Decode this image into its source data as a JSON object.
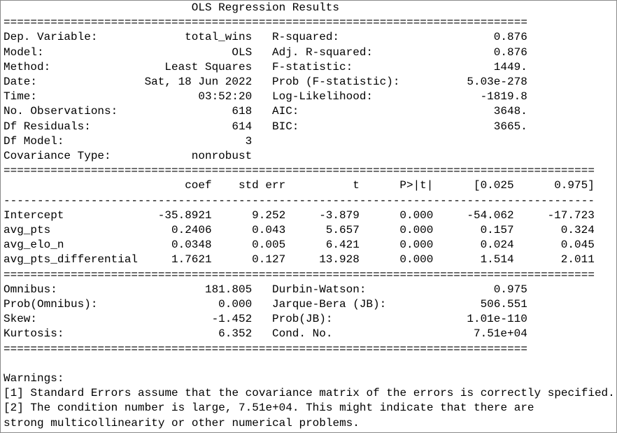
{
  "title": "OLS Regression Results",
  "separators": {
    "narrow": "==============================================================================",
    "wide": "========================================================================================",
    "dash": "----------------------------------------------------------------------------------------"
  },
  "model_info": {
    "left": [
      [
        "Dep. Variable:",
        "total_wins"
      ],
      [
        "Model:",
        "OLS"
      ],
      [
        "Method:",
        "Least Squares"
      ],
      [
        "Date:",
        "Sat, 18 Jun 2022"
      ],
      [
        "Time:",
        "03:52:20"
      ],
      [
        "No. Observations:",
        "618"
      ],
      [
        "Df Residuals:",
        "614"
      ],
      [
        "Df Model:",
        "3"
      ],
      [
        "Covariance Type:",
        "nonrobust"
      ]
    ],
    "right": [
      [
        "R-squared:",
        "0.876"
      ],
      [
        "Adj. R-squared:",
        "0.876"
      ],
      [
        "F-statistic:",
        "1449."
      ],
      [
        "Prob (F-statistic):",
        "5.03e-278"
      ],
      [
        "Log-Likelihood:",
        "-1819.8"
      ],
      [
        "AIC:",
        "3648."
      ],
      [
        "BIC:",
        "3665."
      ]
    ]
  },
  "coefficients": {
    "header": [
      "coef",
      "std err",
      "t",
      "P>|t|",
      "[0.025",
      "0.975]"
    ],
    "rows": [
      [
        "Intercept",
        "-35.8921",
        "9.252",
        "-3.879",
        "0.000",
        "-54.062",
        "-17.723"
      ],
      [
        "avg_pts",
        "0.2406",
        "0.043",
        "5.657",
        "0.000",
        "0.157",
        "0.324"
      ],
      [
        "avg_elo_n",
        "0.0348",
        "0.005",
        "6.421",
        "0.000",
        "0.024",
        "0.045"
      ],
      [
        "avg_pts_differential",
        "1.7621",
        "0.127",
        "13.928",
        "0.000",
        "1.514",
        "2.011"
      ]
    ]
  },
  "diagnostics": {
    "left": [
      [
        "Omnibus:",
        "181.805"
      ],
      [
        "Prob(Omnibus):",
        "0.000"
      ],
      [
        "Skew:",
        "-1.452"
      ],
      [
        "Kurtosis:",
        "6.352"
      ]
    ],
    "right": [
      [
        "Durbin-Watson:",
        "0.975"
      ],
      [
        "Jarque-Bera (JB):",
        "506.551"
      ],
      [
        "Prob(JB):",
        "1.01e-110"
      ],
      [
        "Cond. No.",
        "7.51e+04"
      ]
    ]
  },
  "warnings": {
    "title": "Warnings:",
    "lines": [
      "[1] Standard Errors assume that the covariance matrix of the errors is correctly specified.",
      "[2] The condition number is large, 7.51e+04. This might indicate that there are",
      "strong multicollinearity or other numerical problems."
    ]
  }
}
